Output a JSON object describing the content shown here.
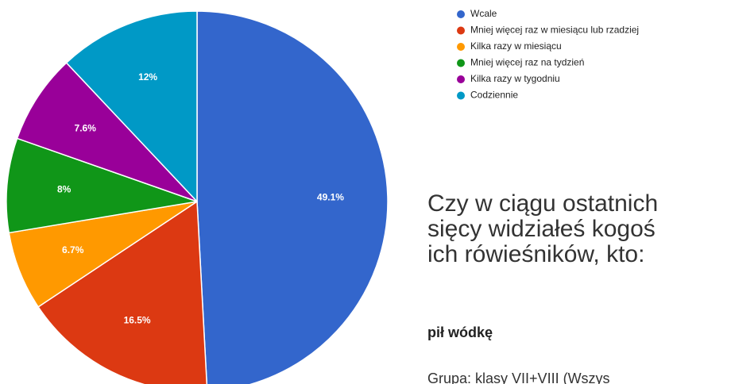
{
  "chart_data": {
    "type": "pie",
    "categories": [
      "Wcale",
      "Mniej więcej raz w miesiącu lub rzadziej",
      "Kilka razy w miesiącu",
      "Mniej więcej raz na tydzień",
      "Kilka razy w tygodniu",
      "Codziennie"
    ],
    "values": [
      49.1,
      16.5,
      6.7,
      8,
      7.6,
      12
    ],
    "value_labels": [
      "49.1%",
      "16.5%",
      "6.7%",
      "8%",
      "7.6%",
      "12%"
    ],
    "colors": [
      "#3366cc",
      "#dc3912",
      "#ff9900",
      "#109618",
      "#990099",
      "#0099c6"
    ],
    "title_lines": [
      "Czy w ciągu ostatnich",
      "sięcy widziałeś kogoś",
      "ich rówieśników, kto:"
    ],
    "subtitle": "pił wódkę",
    "note": "Grupa: klasy VII+VIII (Wszys"
  }
}
